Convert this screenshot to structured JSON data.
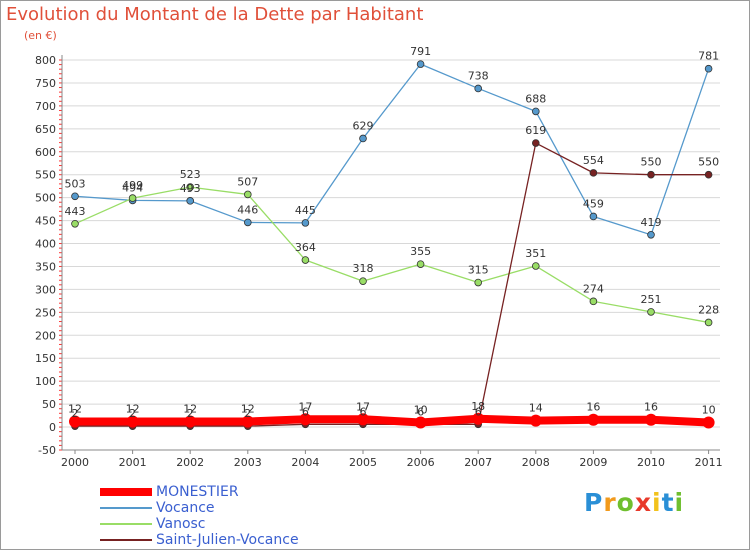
{
  "header": {
    "title": "Evolution du Montant de la Dette par Habitant",
    "subtitle": "(en €)"
  },
  "logo": {
    "text": "Proxiti",
    "letters": [
      "P",
      "r",
      "o",
      "x",
      "i",
      "t",
      "i"
    ],
    "colors": [
      "#2a8fd6",
      "#f29a1c",
      "#6fbf2e",
      "#e8392a",
      "#f2c21c",
      "#2a8fd6",
      "#6fbf2e"
    ]
  },
  "chart_data": {
    "type": "line",
    "title": "Evolution du Montant de la Dette par Habitant",
    "ylabel": "(en €)",
    "xlabel": "",
    "x": [
      "2000",
      "2001",
      "2002",
      "2003",
      "2004",
      "2005",
      "2006",
      "2007",
      "2008",
      "2009",
      "2010",
      "2011"
    ],
    "ylim": [
      -50,
      800
    ],
    "yticks": [
      -50,
      0,
      50,
      100,
      150,
      200,
      250,
      300,
      350,
      400,
      450,
      500,
      550,
      600,
      650,
      700,
      750,
      800
    ],
    "legend_position": "bottom-left",
    "series": [
      {
        "name": "MONESTIER",
        "color": "#ff0000",
        "values": [
          12,
          12,
          12,
          12,
          17,
          17,
          10,
          18,
          14,
          16,
          16,
          10
        ],
        "labels": [
          "12",
          "12",
          "12",
          "12",
          "17",
          "17",
          "10",
          "18",
          "14",
          "16",
          "16",
          "10"
        ]
      },
      {
        "name": "Vocance",
        "color": "#5599cc",
        "values": [
          503,
          494,
          493,
          446,
          445,
          629,
          791,
          738,
          688,
          459,
          419,
          781
        ],
        "labels": [
          "503",
          "494",
          "493",
          "446",
          "445",
          "629",
          "791",
          "738",
          "688",
          "459",
          "419",
          "781"
        ]
      },
      {
        "name": "Vanosc",
        "color": "#99dd66",
        "values": [
          443,
          499,
          523,
          507,
          364,
          318,
          355,
          315,
          351,
          274,
          251,
          228
        ],
        "labels": [
          "443",
          "499",
          "523",
          "507",
          "364",
          "318",
          "355",
          "315",
          "351",
          "274",
          "251",
          "228"
        ]
      },
      {
        "name": "Saint-Julien-Vocance",
        "color": "#772222",
        "values": [
          2,
          2,
          2,
          2,
          6,
          6,
          6,
          6,
          619,
          554,
          550,
          550
        ],
        "labels": [
          "2",
          "2",
          "2",
          "2",
          "6",
          "6",
          "6",
          "6",
          "619",
          "554",
          "550",
          "550"
        ]
      }
    ]
  }
}
